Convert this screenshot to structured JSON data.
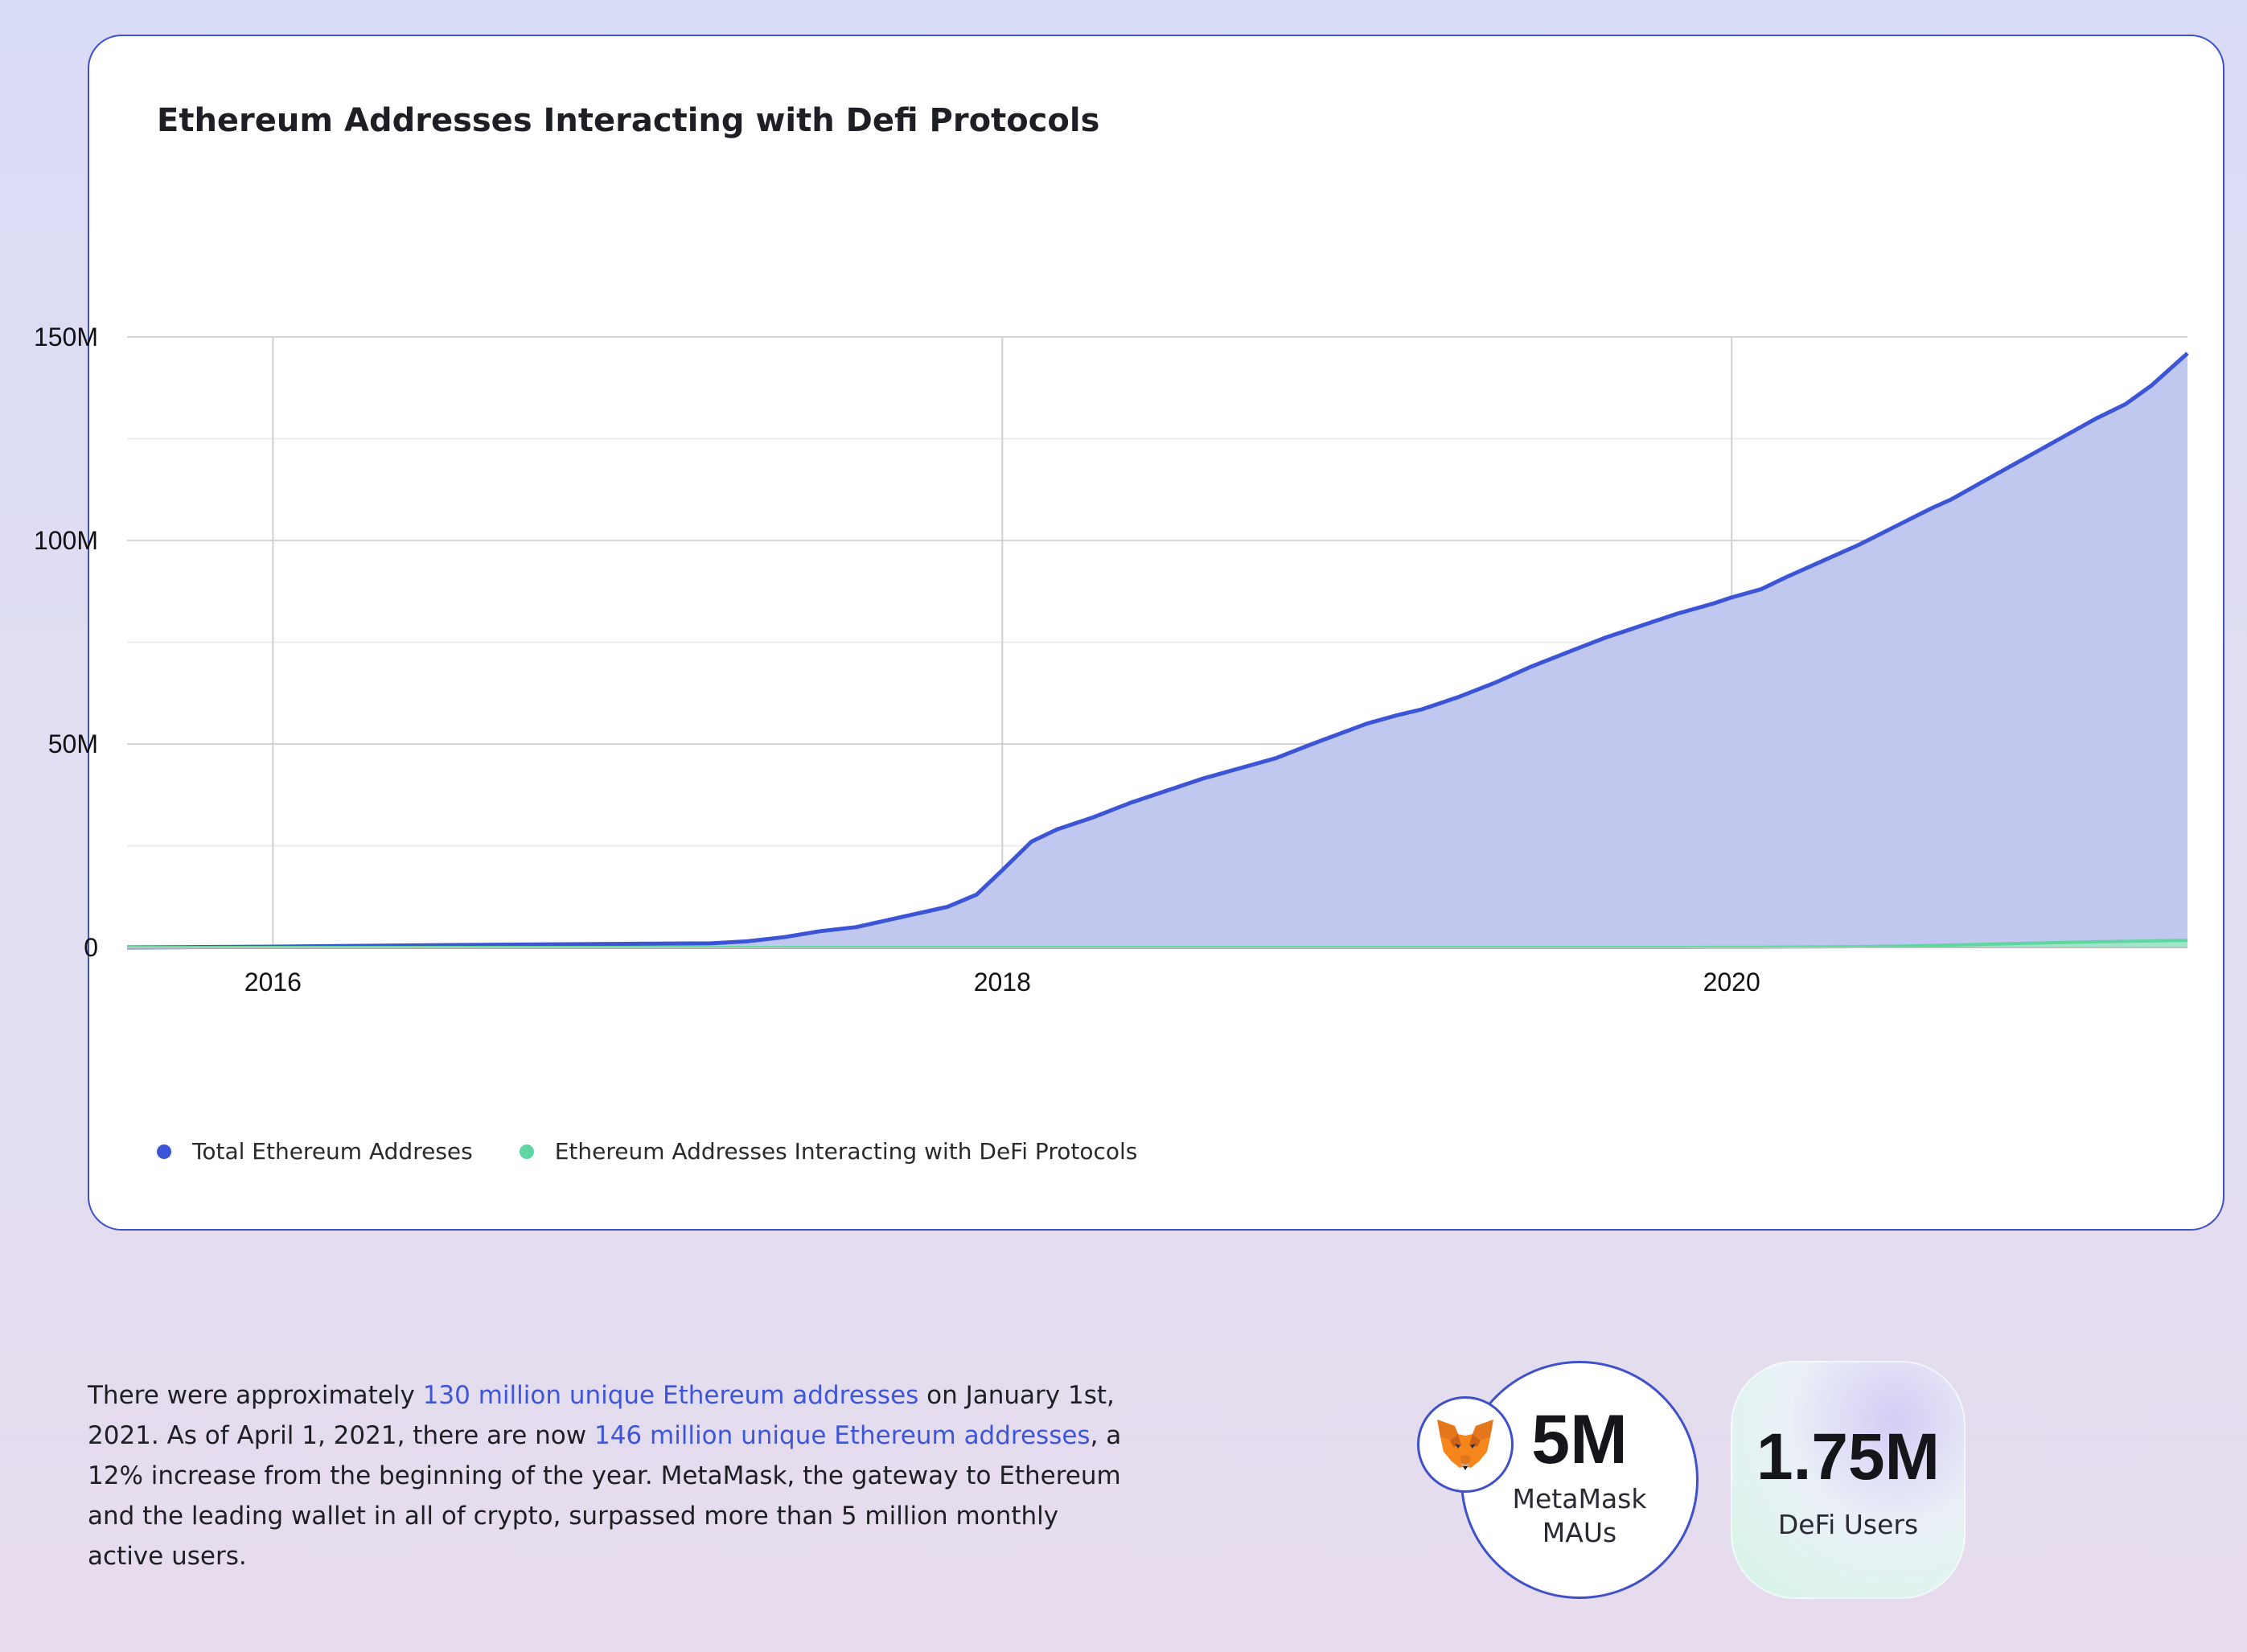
{
  "chart_data": {
    "type": "area",
    "title": "Ethereum Addresses Interacting with Defi Protocols",
    "xlabel": "",
    "ylabel": "",
    "x_tick_labels": [
      "2016",
      "2018",
      "2020"
    ],
    "x_ticks": [
      2016,
      2018,
      2020
    ],
    "y_tick_labels": [
      "0",
      "50M",
      "100M",
      "150M"
    ],
    "y_ticks": [
      0,
      50,
      100,
      150
    ],
    "y_unit": "millions",
    "xlim": [
      2015.6,
      2021.25
    ],
    "ylim": [
      0,
      150
    ],
    "grid": true,
    "legend_position": "bottom-left",
    "x": [
      2015.6,
      2016.0,
      2016.5,
      2017.0,
      2017.2,
      2017.3,
      2017.4,
      2017.5,
      2017.6,
      2017.7,
      2017.8,
      2017.85,
      2017.93,
      2018.0,
      2018.08,
      2018.15,
      2018.25,
      2018.35,
      2018.45,
      2018.55,
      2018.65,
      2018.75,
      2018.85,
      2019.0,
      2019.08,
      2019.15,
      2019.25,
      2019.35,
      2019.45,
      2019.55,
      2019.65,
      2019.75,
      2019.85,
      2019.95,
      2020.0,
      2020.08,
      2020.15,
      2020.25,
      2020.35,
      2020.45,
      2020.55,
      2020.6,
      2020.7,
      2020.8,
      2020.9,
      2021.0,
      2021.08,
      2021.15,
      2021.25
    ],
    "series": [
      {
        "name": "Total Ethereum Addreses",
        "color": "#3b55d6",
        "fill": "#c0c8f0",
        "values": [
          0,
          0.2,
          0.6,
          0.9,
          1.0,
          1.5,
          2.5,
          4.0,
          5.0,
          7.0,
          9.0,
          10.0,
          13.0,
          19.0,
          26.0,
          29.0,
          32.0,
          35.5,
          38.5,
          41.5,
          44.0,
          46.5,
          50.0,
          55.0,
          57.0,
          58.5,
          61.5,
          65.0,
          69.0,
          72.5,
          76.0,
          79.0,
          82.0,
          84.5,
          86.0,
          88.0,
          91.0,
          95.0,
          99.0,
          103.5,
          108.0,
          110.0,
          115.0,
          120.0,
          125.0,
          130.0,
          133.5,
          138.0,
          146.0
        ]
      },
      {
        "name": "Ethereum Addresses Interacting with DeFi Protocols",
        "color": "#5fd6a0",
        "fill": "#9ee7c2",
        "values": [
          0,
          0,
          0,
          0,
          0,
          0,
          0,
          0,
          0,
          0,
          0,
          0,
          0,
          0,
          0,
          0,
          0,
          0,
          0,
          0,
          0,
          0,
          0,
          0,
          0,
          0,
          0,
          0,
          0,
          0,
          0,
          0,
          0,
          0.05,
          0.05,
          0.05,
          0.1,
          0.15,
          0.2,
          0.3,
          0.5,
          0.6,
          0.8,
          1.0,
          1.2,
          1.4,
          1.5,
          1.6,
          1.75
        ]
      }
    ]
  },
  "summary": {
    "text_1": "There were approximately ",
    "link_1": "130 million unique Ethereum addresses",
    "text_2": " on January 1st, 2021. As of April 1, 2021, there are now ",
    "link_2": "146 million unique Ethereum addresses",
    "text_3": ", a 12% increase from the beginning of the year. MetaMask, the gateway to Ethereum and the leading wallet in all of crypto, surpassed more than 5 million monthly active users."
  },
  "stats": {
    "metamask": {
      "value": "5M",
      "label_line1": "MetaMask",
      "label_line2": "MAUs",
      "icon": "metamask-fox-icon"
    },
    "defi": {
      "value": "1.75M",
      "label": "DeFi Users"
    }
  }
}
